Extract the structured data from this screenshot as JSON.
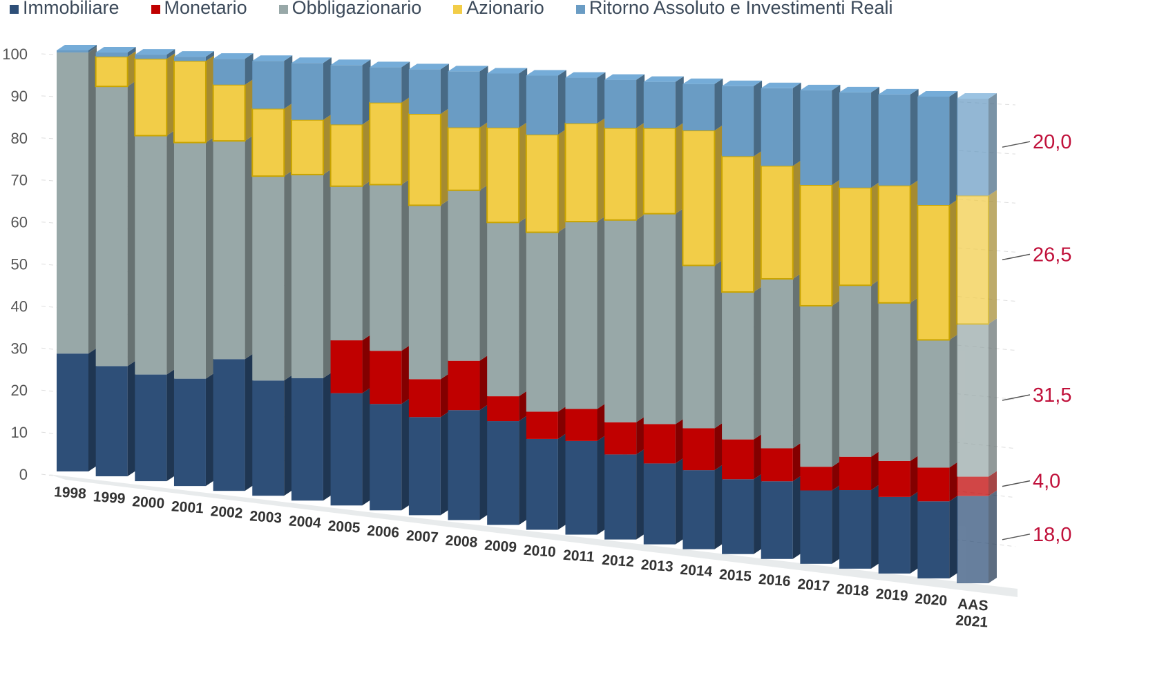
{
  "chart_data": {
    "type": "bar",
    "stacked": true,
    "three_d": true,
    "title": "",
    "xlabel": "",
    "ylabel": "",
    "ylim": [
      0,
      100
    ],
    "yticks": [
      "0",
      "10",
      "20",
      "30",
      "40",
      "50",
      "60",
      "70",
      "80",
      "90",
      "100"
    ],
    "grid": true,
    "legend_position": "top",
    "categories": [
      "1998",
      "1999",
      "2000",
      "2001",
      "2002",
      "2003",
      "2004",
      "2005",
      "2006",
      "2007",
      "2008",
      "2009",
      "2010",
      "2011",
      "2012",
      "2013",
      "2014",
      "2015",
      "2016",
      "2017",
      "2018",
      "2019",
      "2020",
      "AAS 2021"
    ],
    "series": [
      {
        "name": "Immobiliare",
        "color": "#2e4f78",
        "values": [
          28,
          26,
          25,
          25,
          30.5,
          26.5,
          28,
          25.5,
          24,
          22,
          24.5,
          23,
          20,
          20.5,
          18.5,
          17.5,
          17,
          16,
          16.5,
          15.5,
          16.5,
          16,
          16,
          18.0
        ]
      },
      {
        "name": "Monetario",
        "color": "#c00000",
        "values": [
          0,
          0,
          0,
          0,
          0,
          0,
          0,
          12,
          12,
          8.5,
          11,
          5.5,
          6,
          7,
          7,
          8.5,
          9,
          8.5,
          7,
          5,
          7,
          7.5,
          7,
          4.0
        ]
      },
      {
        "name": "Obbligazionario",
        "color": "#98a8a8",
        "values": [
          71.5,
          66,
          56,
          55,
          50.5,
          47,
          46.5,
          35,
          37.5,
          39,
          38,
          38.5,
          39.5,
          41,
          44,
          45.5,
          35,
          31.5,
          36,
          34,
          36,
          33,
          26.5,
          31.5
        ]
      },
      {
        "name": "Azionario",
        "color": "#f2cd48",
        "values": [
          0,
          7,
          18,
          19,
          13,
          15.5,
          12.5,
          14,
          18.5,
          20.5,
          14,
          21,
          21.5,
          21.5,
          20,
          18.5,
          29,
          29,
          24,
          25.5,
          20.5,
          24.5,
          28,
          26.5
        ]
      },
      {
        "name": "Ritorno Assoluto e Investimenti Reali",
        "color": "#6a9cc4",
        "values": [
          0.5,
          1,
          1,
          1,
          6,
          11,
          13,
          13.5,
          8,
          10,
          12.5,
          12,
          13,
          10,
          10.5,
          10,
          10,
          15,
          16.5,
          20,
          20,
          19,
          22.5,
          20.0
        ]
      }
    ],
    "annotations": [
      "20,0",
      "26,5",
      "31,5",
      "4,0",
      "18,0"
    ]
  }
}
